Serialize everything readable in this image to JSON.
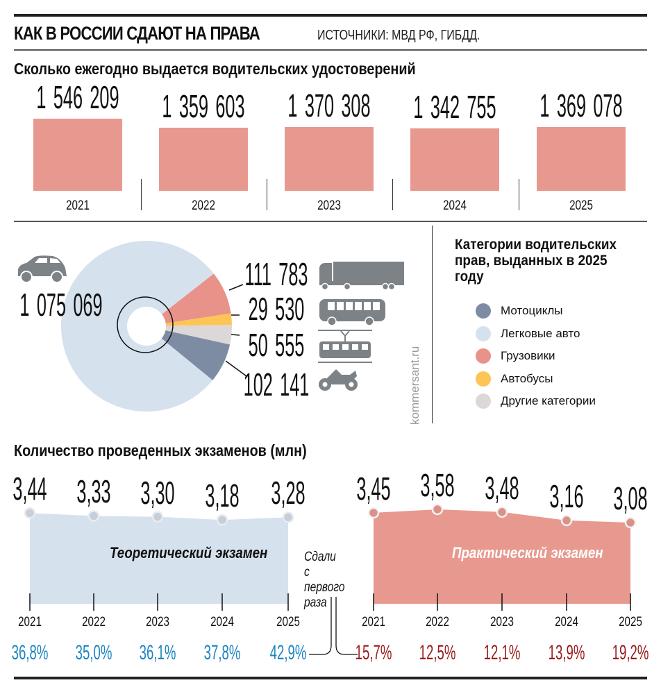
{
  "header": {
    "title": "КАК В РОССИИ СДАЮТ НА ПРАВА",
    "source": "ИСТОЧНИКИ: МВД РФ, ГИБДД."
  },
  "watermark": "kommersant.ru",
  "colors": {
    "bar": "#e8998f",
    "cars": "#d6e1ee",
    "trucks": "#e8928a",
    "buses": "#fcc555",
    "other": "#ddd8d8",
    "moto": "#7e8ca3",
    "icon": "#7d8287",
    "pct_theory": "#1b85c2",
    "pct_practice": "#9a1c1c",
    "theory_area": "#d6e1ee",
    "practice_area": "#e8998f"
  },
  "chart_data": [
    {
      "type": "bar",
      "title": "Сколько ежегодно выдается водительских удостоверений",
      "categories": [
        "2021",
        "2022",
        "2023",
        "2024",
        "2025"
      ],
      "values": [
        1546209,
        1359603,
        1370308,
        1342755,
        1369078
      ],
      "labels": [
        "1 546 209",
        "1 359 603",
        "1 370 308",
        "1 342 755",
        "1 369 078"
      ]
    },
    {
      "type": "pie",
      "title": "Категории водительских прав, выданных в 2025 году",
      "slices": [
        {
          "name": "Легковые авто",
          "value": 1075069,
          "label": "1 075 069",
          "icon": "car-icon",
          "color_key": "cars"
        },
        {
          "name": "Грузовики",
          "value": 111783,
          "label": "111 783",
          "icon": "truck-icon",
          "color_key": "trucks"
        },
        {
          "name": "Автобусы",
          "value": 29530,
          "label": "29 530",
          "icon": "bus-icon",
          "color_key": "buses"
        },
        {
          "name": "Другие категории",
          "value": 50555,
          "label": "50 555",
          "icon": "tram-icon",
          "color_key": "other"
        },
        {
          "name": "Мотоциклы",
          "value": 102141,
          "label": "102 141",
          "icon": "motorcycle-icon",
          "color_key": "moto"
        }
      ],
      "legend": [
        {
          "name": "Мотоциклы",
          "color_key": "moto"
        },
        {
          "name": "Легковые авто",
          "color_key": "cars"
        },
        {
          "name": "Грузовики",
          "color_key": "trucks"
        },
        {
          "name": "Автобусы",
          "color_key": "buses"
        },
        {
          "name": "Другие категории",
          "color_key": "other"
        }
      ],
      "legend_placement": "right"
    },
    {
      "type": "area",
      "title": "Количество проведенных экзаменов (млн)",
      "categories": [
        "2021",
        "2022",
        "2023",
        "2024",
        "2025"
      ],
      "pass_label": "Сдали с первого раза",
      "series": [
        {
          "name": "Теоретический экзамен",
          "values": [
            3.44,
            3.33,
            3.3,
            3.18,
            3.28
          ],
          "labels": [
            "3,44",
            "3,33",
            "3,30",
            "3,18",
            "3,28"
          ],
          "first_try_pass": [
            "36,8%",
            "35,0%",
            "36,1%",
            "37,8%",
            "42,9%"
          ]
        },
        {
          "name": "Практический экзамен",
          "values": [
            3.45,
            3.58,
            3.48,
            3.16,
            3.08
          ],
          "labels": [
            "3,45",
            "3,58",
            "3,48",
            "3,16",
            "3,08"
          ],
          "first_try_pass": [
            "15,7%",
            "12,5%",
            "12,1%",
            "13,9%",
            "19,2%"
          ]
        }
      ]
    }
  ]
}
